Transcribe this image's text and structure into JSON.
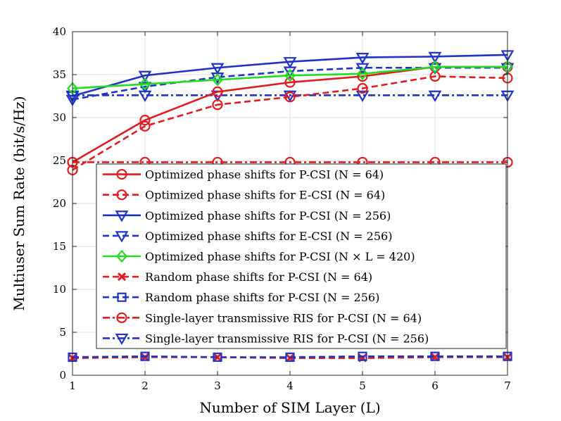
{
  "chart_data": {
    "type": "line",
    "title": "",
    "xlabel": "Number of SIM Layer (L)",
    "ylabel": "Multiuser Sum Rate (bit/s/Hz)",
    "xlim": [
      1,
      7
    ],
    "ylim": [
      0,
      40
    ],
    "grid": true,
    "legend_position": "center-bottom",
    "x": [
      1,
      2,
      3,
      4,
      5,
      6,
      7
    ],
    "x_ticks": [
      "1",
      "2",
      "3",
      "4",
      "5",
      "6",
      "7"
    ],
    "y_ticks": [
      "0",
      "5",
      "10",
      "15",
      "20",
      "25",
      "30",
      "35",
      "40"
    ],
    "series": [
      {
        "name": "Optimized phase shifts for P-CSI (N = 64)",
        "color": "#e41a1c",
        "dash": "solid",
        "marker": "circle",
        "values": [
          24.8,
          29.7,
          33.0,
          34.1,
          34.8,
          35.9,
          35.9
        ]
      },
      {
        "name": "Optimized phase shifts for E-CSI (N = 64)",
        "color": "#e41a1c",
        "dash": "dashed",
        "marker": "circle",
        "values": [
          23.9,
          29.0,
          31.5,
          32.4,
          33.4,
          34.8,
          34.6
        ]
      },
      {
        "name": "Optimized phase shifts for P-CSI (N = 256)",
        "color": "#1f33c9",
        "dash": "solid",
        "marker": "triangle",
        "values": [
          32.5,
          34.9,
          35.8,
          36.5,
          37.0,
          37.1,
          37.3
        ]
      },
      {
        "name": "Optimized phase shifts for E-CSI (N = 256)",
        "color": "#1f33c9",
        "dash": "dashed",
        "marker": "triangle",
        "values": [
          32.1,
          33.6,
          34.7,
          35.4,
          35.8,
          35.8,
          35.8
        ]
      },
      {
        "name": "Optimized phase shifts for P-CSI (N × L = 420)",
        "color": "#22dd22",
        "dash": "solid",
        "marker": "diamond",
        "values": [
          33.4,
          33.9,
          34.4,
          34.9,
          35.1,
          35.9,
          35.9
        ]
      },
      {
        "name": "Random phase shifts for P-CSI (N = 64)",
        "color": "#e41a1c",
        "dash": "dashed",
        "marker": "x",
        "values": [
          2.0,
          2.1,
          2.1,
          2.0,
          2.0,
          2.1,
          2.1
        ]
      },
      {
        "name": "Random phase shifts for P-CSI (N = 256)",
        "color": "#1f33c9",
        "dash": "dashed",
        "marker": "square",
        "values": [
          2.1,
          2.2,
          2.1,
          2.1,
          2.2,
          2.2,
          2.2
        ]
      },
      {
        "name": "Single-layer transmissive RIS for P-CSI (N = 64)",
        "color": "#e41a1c",
        "dash": "dashdot",
        "marker": "circle",
        "values": [
          24.8,
          24.8,
          24.8,
          24.8,
          24.8,
          24.8,
          24.8
        ]
      },
      {
        "name": "Single-layer transmissive RIS for P-CSI (N = 256)",
        "color": "#1f33c9",
        "dash": "dashdot",
        "marker": "triangle",
        "values": [
          32.6,
          32.6,
          32.6,
          32.6,
          32.6,
          32.6,
          32.6
        ]
      }
    ]
  }
}
